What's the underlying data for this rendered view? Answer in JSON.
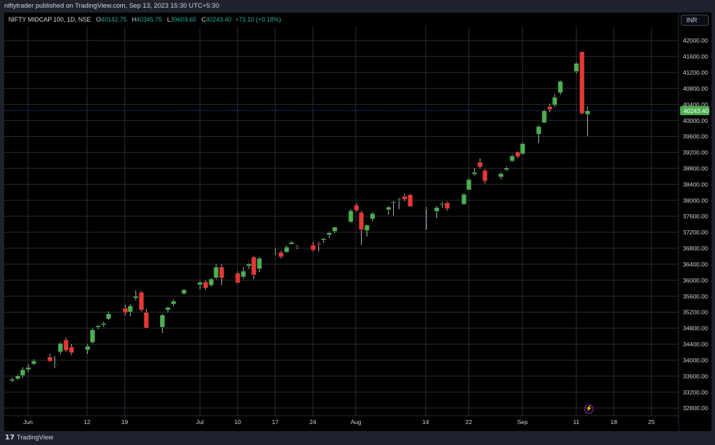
{
  "header": {
    "publish_text": "niftytrader published on TradingView.com, Sep 13, 2023 15:30 UTC+5:30",
    "symbol": "NIFTY MIDCAP 100, 1D, NSE",
    "o_label": "O",
    "o_value": "40142.75",
    "h_label": "H",
    "h_value": "40345.75",
    "l_label": "L",
    "l_value": "39603.65",
    "c_label": "C",
    "c_value": "40243.40",
    "change": "+73.10 (+0.18%)"
  },
  "currency_button": "INR",
  "last_price_label": "40243.40",
  "footer": {
    "logo_text": "TradingView",
    "logo_mark": "17"
  },
  "colors": {
    "up": "#4caf50",
    "down": "#e53935",
    "wick": "#b2b5be",
    "grid": "#2a2e39",
    "price_line": "#2962ff",
    "accent": "#9c27b0"
  },
  "icons": {
    "bolt": "lightning-icon"
  },
  "chart_data": {
    "type": "candlestick",
    "title": "NIFTY MIDCAP 100, 1D, NSE",
    "ylim": [
      32600,
      42400
    ],
    "y_ticks": [
      "32800.00",
      "33200.00",
      "33600.00",
      "34000.00",
      "34400.00",
      "34800.00",
      "35200.00",
      "35600.00",
      "36000.00",
      "36400.00",
      "36800.00",
      "37200.00",
      "37600.00",
      "38000.00",
      "38400.00",
      "38800.00",
      "39200.00",
      "39600.00",
      "40000.00",
      "40400.00",
      "40800.00",
      "41200.00",
      "41600.00",
      "42000.00"
    ],
    "x_ticks": [
      {
        "label": "Jun",
        "date": "2023-06-01"
      },
      {
        "label": "12",
        "date": "2023-06-12"
      },
      {
        "label": "19",
        "date": "2023-06-19"
      },
      {
        "label": "Jul",
        "date": "2023-07-03"
      },
      {
        "label": "10",
        "date": "2023-07-10"
      },
      {
        "label": "17",
        "date": "2023-07-17"
      },
      {
        "label": "24",
        "date": "2023-07-24"
      },
      {
        "label": "Aug",
        "date": "2023-08-01"
      },
      {
        "label": "14",
        "date": "2023-08-14"
      },
      {
        "label": "22",
        "date": "2023-08-22"
      },
      {
        "label": "Sep",
        "date": "2023-09-01"
      },
      {
        "label": "11",
        "date": "2023-09-11"
      },
      {
        "label": "18",
        "date": "2023-09-18"
      },
      {
        "label": "25",
        "date": "2023-09-25"
      }
    ],
    "last_price": 40243.4,
    "candles": [
      {
        "date": "2023-05-29",
        "o": 33480,
        "h": 33560,
        "l": 33450,
        "c": 33520
      },
      {
        "date": "2023-05-30",
        "o": 33530,
        "h": 33640,
        "l": 33500,
        "c": 33610
      },
      {
        "date": "2023-05-31",
        "o": 33610,
        "h": 33820,
        "l": 33560,
        "c": 33760
      },
      {
        "date": "2023-06-01",
        "o": 33760,
        "h": 33900,
        "l": 33700,
        "c": 33820
      },
      {
        "date": "2023-06-02",
        "o": 33900,
        "h": 34020,
        "l": 33870,
        "c": 33980
      },
      {
        "date": "2023-06-05",
        "o": 34080,
        "h": 34160,
        "l": 33950,
        "c": 33970
      },
      {
        "date": "2023-06-06",
        "o": 33860,
        "h": 34100,
        "l": 33800,
        "c": 33880
      },
      {
        "date": "2023-06-07",
        "o": 34200,
        "h": 34450,
        "l": 34150,
        "c": 34420
      },
      {
        "date": "2023-06-08",
        "o": 34510,
        "h": 34560,
        "l": 34200,
        "c": 34240
      },
      {
        "date": "2023-06-09",
        "o": 34330,
        "h": 34400,
        "l": 34130,
        "c": 34180
      },
      {
        "date": "2023-06-12",
        "o": 34250,
        "h": 34390,
        "l": 34150,
        "c": 34350
      },
      {
        "date": "2023-06-13",
        "o": 34440,
        "h": 34800,
        "l": 34420,
        "c": 34760
      },
      {
        "date": "2023-06-14",
        "o": 34820,
        "h": 34880,
        "l": 34780,
        "c": 34860
      },
      {
        "date": "2023-06-15",
        "o": 34880,
        "h": 34960,
        "l": 34830,
        "c": 34920
      },
      {
        "date": "2023-06-16",
        "o": 35030,
        "h": 35220,
        "l": 35000,
        "c": 35160
      },
      {
        "date": "2023-06-19",
        "o": 35300,
        "h": 35380,
        "l": 35120,
        "c": 35180
      },
      {
        "date": "2023-06-20",
        "o": 35200,
        "h": 35400,
        "l": 35100,
        "c": 35360
      },
      {
        "date": "2023-06-21",
        "o": 35550,
        "h": 35740,
        "l": 35500,
        "c": 35600
      },
      {
        "date": "2023-06-22",
        "o": 35700,
        "h": 35740,
        "l": 35220,
        "c": 35250
      },
      {
        "date": "2023-06-23",
        "o": 35200,
        "h": 35280,
        "l": 34800,
        "c": 34800
      },
      {
        "date": "2023-06-26",
        "o": 34820,
        "h": 35160,
        "l": 34680,
        "c": 35130
      },
      {
        "date": "2023-06-27",
        "o": 35250,
        "h": 35340,
        "l": 35190,
        "c": 35320
      },
      {
        "date": "2023-06-28",
        "o": 35400,
        "h": 35520,
        "l": 35350,
        "c": 35480
      },
      {
        "date": "2023-06-30",
        "o": 35660,
        "h": 35780,
        "l": 35640,
        "c": 35760
      },
      {
        "date": "2023-07-03",
        "o": 35880,
        "h": 35980,
        "l": 35770,
        "c": 35950
      },
      {
        "date": "2023-07-04",
        "o": 35960,
        "h": 36000,
        "l": 35750,
        "c": 35800
      },
      {
        "date": "2023-07-05",
        "o": 35870,
        "h": 36060,
        "l": 35840,
        "c": 36030
      },
      {
        "date": "2023-07-06",
        "o": 36060,
        "h": 36400,
        "l": 36020,
        "c": 36330
      },
      {
        "date": "2023-07-07",
        "o": 36330,
        "h": 36400,
        "l": 35880,
        "c": 36050
      },
      {
        "date": "2023-07-10",
        "o": 36180,
        "h": 36220,
        "l": 35920,
        "c": 35930
      },
      {
        "date": "2023-07-11",
        "o": 36080,
        "h": 36320,
        "l": 36030,
        "c": 36230
      },
      {
        "date": "2023-07-12",
        "o": 36350,
        "h": 36430,
        "l": 36280,
        "c": 36410
      },
      {
        "date": "2023-07-13",
        "o": 36580,
        "h": 36610,
        "l": 36030,
        "c": 36130
      },
      {
        "date": "2023-07-14",
        "o": 36280,
        "h": 36580,
        "l": 36200,
        "c": 36550
      },
      {
        "date": "2023-07-17",
        "o": 36650,
        "h": 36790,
        "l": 36620,
        "c": 36670
      },
      {
        "date": "2023-07-18",
        "o": 36700,
        "h": 36740,
        "l": 36540,
        "c": 36580
      },
      {
        "date": "2023-07-19",
        "o": 36700,
        "h": 36870,
        "l": 36680,
        "c": 36830
      },
      {
        "date": "2023-07-20",
        "o": 36900,
        "h": 36980,
        "l": 36890,
        "c": 36950
      },
      {
        "date": "2023-07-21",
        "o": 36840,
        "h": 36880,
        "l": 36780,
        "c": 36830
      },
      {
        "date": "2023-07-24",
        "o": 36880,
        "h": 36950,
        "l": 36720,
        "c": 36750
      },
      {
        "date": "2023-07-25",
        "o": 36920,
        "h": 36960,
        "l": 36720,
        "c": 36890
      },
      {
        "date": "2023-07-26",
        "o": 37000,
        "h": 37060,
        "l": 36940,
        "c": 37040
      },
      {
        "date": "2023-07-27",
        "o": 37130,
        "h": 37210,
        "l": 37060,
        "c": 37190
      },
      {
        "date": "2023-07-28",
        "o": 37220,
        "h": 37330,
        "l": 37180,
        "c": 37330
      },
      {
        "date": "2023-07-31",
        "o": 37460,
        "h": 37780,
        "l": 37430,
        "c": 37740
      },
      {
        "date": "2023-08-01",
        "o": 37880,
        "h": 37920,
        "l": 37710,
        "c": 37740
      },
      {
        "date": "2023-08-02",
        "o": 37700,
        "h": 37740,
        "l": 36880,
        "c": 37260
      },
      {
        "date": "2023-08-03",
        "o": 37240,
        "h": 37400,
        "l": 37090,
        "c": 37380
      },
      {
        "date": "2023-08-04",
        "o": 37530,
        "h": 37700,
        "l": 37480,
        "c": 37670
      },
      {
        "date": "2023-08-07",
        "o": 37760,
        "h": 37860,
        "l": 37640,
        "c": 37830
      },
      {
        "date": "2023-08-08",
        "o": 37930,
        "h": 37980,
        "l": 37620,
        "c": 37960
      },
      {
        "date": "2023-08-09",
        "o": 38000,
        "h": 38060,
        "l": 37780,
        "c": 38020
      },
      {
        "date": "2023-08-10",
        "o": 38100,
        "h": 38160,
        "l": 37980,
        "c": 38020
      },
      {
        "date": "2023-08-11",
        "o": 38140,
        "h": 38160,
        "l": 37860,
        "c": 37840
      },
      {
        "date": "2023-08-14",
        "o": 37790,
        "h": 37830,
        "l": 37260,
        "c": 37800
      },
      {
        "date": "2023-08-16",
        "o": 37720,
        "h": 37860,
        "l": 37560,
        "c": 37820
      },
      {
        "date": "2023-08-17",
        "o": 37880,
        "h": 37960,
        "l": 37810,
        "c": 37910
      },
      {
        "date": "2023-08-18",
        "o": 37940,
        "h": 37970,
        "l": 37740,
        "c": 37790
      },
      {
        "date": "2023-08-21",
        "o": 37900,
        "h": 38180,
        "l": 37880,
        "c": 38150
      },
      {
        "date": "2023-08-22",
        "o": 38260,
        "h": 38550,
        "l": 38250,
        "c": 38520
      },
      {
        "date": "2023-08-23",
        "o": 38650,
        "h": 38810,
        "l": 38620,
        "c": 38700
      },
      {
        "date": "2023-08-24",
        "o": 38960,
        "h": 39050,
        "l": 38800,
        "c": 38830
      },
      {
        "date": "2023-08-25",
        "o": 38750,
        "h": 38780,
        "l": 38420,
        "c": 38480
      },
      {
        "date": "2023-08-28",
        "o": 38580,
        "h": 38700,
        "l": 38530,
        "c": 38670
      },
      {
        "date": "2023-08-29",
        "o": 38760,
        "h": 38850,
        "l": 38730,
        "c": 38810
      },
      {
        "date": "2023-08-30",
        "o": 38980,
        "h": 39150,
        "l": 38960,
        "c": 39110
      },
      {
        "date": "2023-08-31",
        "o": 39210,
        "h": 39230,
        "l": 39050,
        "c": 39090
      },
      {
        "date": "2023-09-01",
        "o": 39160,
        "h": 39450,
        "l": 39140,
        "c": 39420
      },
      {
        "date": "2023-09-04",
        "o": 39650,
        "h": 39880,
        "l": 39430,
        "c": 39850
      },
      {
        "date": "2023-09-05",
        "o": 39940,
        "h": 40270,
        "l": 39930,
        "c": 40240
      },
      {
        "date": "2023-09-06",
        "o": 40350,
        "h": 40420,
        "l": 40200,
        "c": 40270
      },
      {
        "date": "2023-09-07",
        "o": 40380,
        "h": 40650,
        "l": 40330,
        "c": 40580
      },
      {
        "date": "2023-09-08",
        "o": 40690,
        "h": 41000,
        "l": 40640,
        "c": 40980
      },
      {
        "date": "2023-09-11",
        "o": 41220,
        "h": 41460,
        "l": 41180,
        "c": 41430
      },
      {
        "date": "2023-09-12",
        "o": 41720,
        "h": 41720,
        "l": 40140,
        "c": 40170
      },
      {
        "date": "2023-09-13",
        "o": 40142.75,
        "h": 40345.75,
        "l": 39603.65,
        "c": 40243.4
      }
    ]
  }
}
